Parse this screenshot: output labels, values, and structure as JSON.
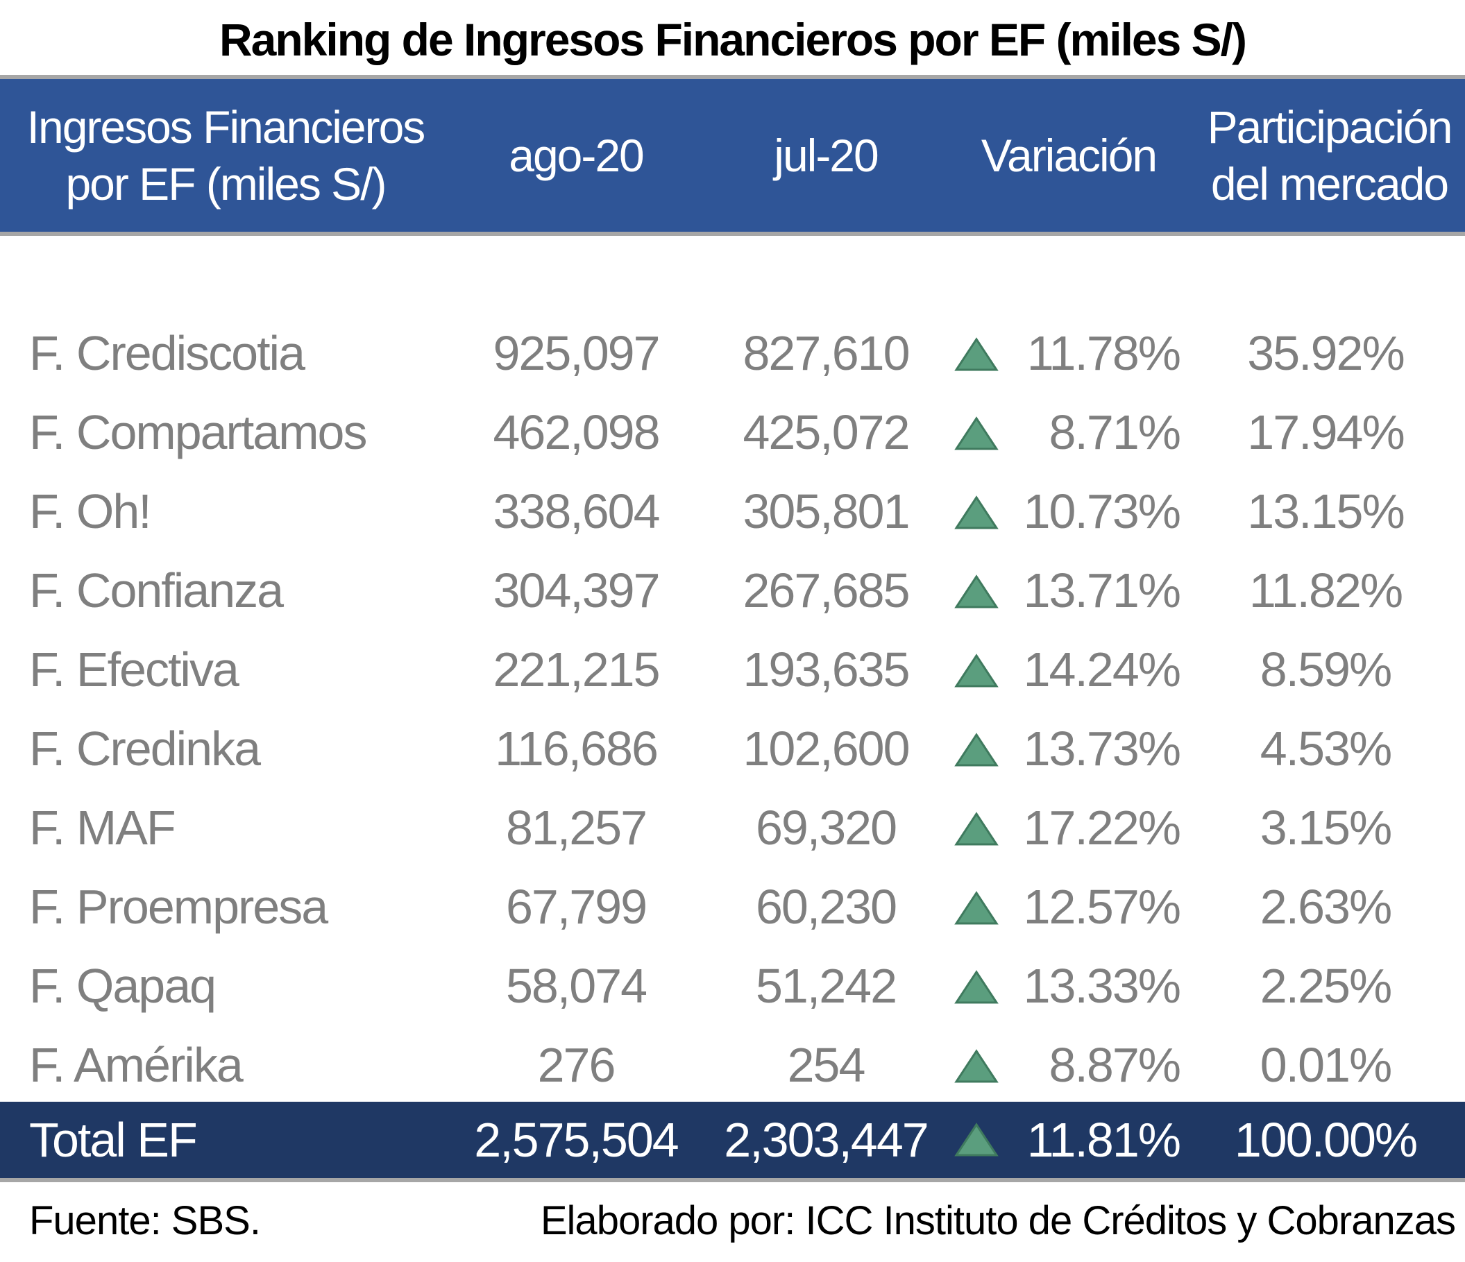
{
  "title": "Ranking de Ingresos Financieros por EF (miles S/)",
  "chart_data": {
    "type": "table",
    "title": "Ranking de Ingresos Financieros por EF (miles S/)",
    "columns": {
      "name_line1": "Ingresos Financieros",
      "name_line2": "por EF (miles S/)",
      "ago": "ago-20",
      "jul": "jul-20",
      "var": "Variación",
      "part_line1": "Participación",
      "part_line2": "del mercado"
    },
    "rows": [
      {
        "name": "F. Crediscotia",
        "ago": "925,097",
        "jul": "827,610",
        "trend": "up",
        "var": "11.78%",
        "part": "35.92%"
      },
      {
        "name": "F. Compartamos",
        "ago": "462,098",
        "jul": "425,072",
        "trend": "up",
        "var": "8.71%",
        "part": "17.94%"
      },
      {
        "name": "F. Oh!",
        "ago": "338,604",
        "jul": "305,801",
        "trend": "up",
        "var": "10.73%",
        "part": "13.15%"
      },
      {
        "name": "F. Confianza",
        "ago": "304,397",
        "jul": "267,685",
        "trend": "up",
        "var": "13.71%",
        "part": "11.82%"
      },
      {
        "name": "F. Efectiva",
        "ago": "221,215",
        "jul": "193,635",
        "trend": "up",
        "var": "14.24%",
        "part": "8.59%"
      },
      {
        "name": "F. Credinka",
        "ago": "116,686",
        "jul": "102,600",
        "trend": "up",
        "var": "13.73%",
        "part": "4.53%"
      },
      {
        "name": "F. MAF",
        "ago": "81,257",
        "jul": "69,320",
        "trend": "up",
        "var": "17.22%",
        "part": "3.15%"
      },
      {
        "name": "F. Proempresa",
        "ago": "67,799",
        "jul": "60,230",
        "trend": "up",
        "var": "12.57%",
        "part": "2.63%"
      },
      {
        "name": "F. Qapaq",
        "ago": "58,074",
        "jul": "51,242",
        "trend": "up",
        "var": "13.33%",
        "part": "2.25%"
      },
      {
        "name": "F. Amérika",
        "ago": "276",
        "jul": "254",
        "trend": "up",
        "var": "8.87%",
        "part": "0.01%"
      }
    ],
    "total": {
      "name": "Total EF",
      "ago": "2,575,504",
      "jul": "2,303,447",
      "trend": "up",
      "var": "11.81%",
      "part": "100.00%"
    }
  },
  "colors": {
    "header_bg": "#2f5597",
    "total_bg": "#1f3864",
    "row_text": "#7f7f7f",
    "up_triangle": "#5b9e7e",
    "rule": "#a6a6a6"
  },
  "icons": {
    "trend_up": "triangle-up-icon"
  },
  "footer": {
    "source": "Fuente: SBS.",
    "credit": "Elaborado por: ICC Instituto de Créditos y Cobranzas"
  }
}
